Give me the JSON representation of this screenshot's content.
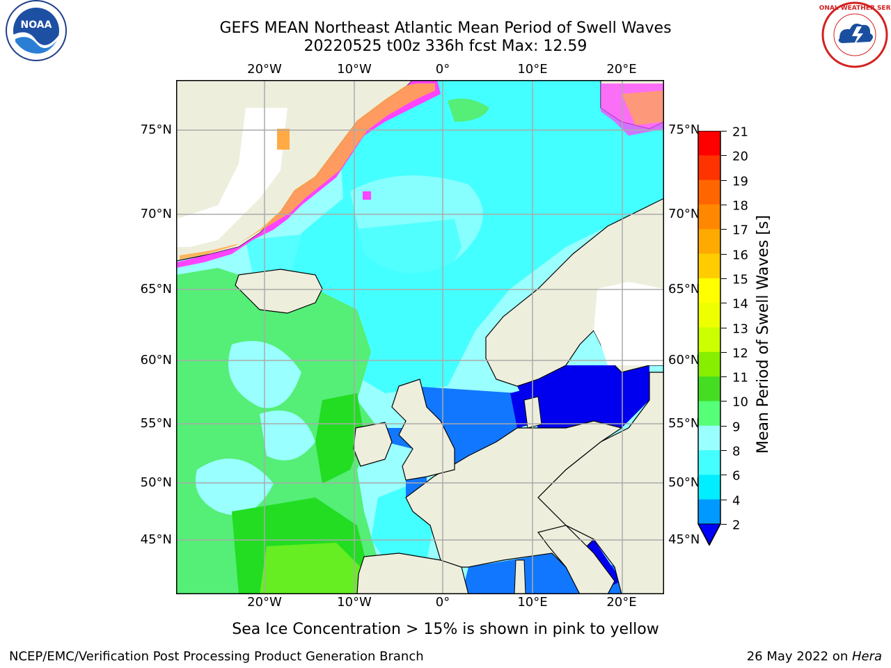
{
  "title_line1": "GEFS MEAN Northeast Atlantic Mean Period of Swell Waves",
  "title_line2": "20220525 t00z 336h fcst   Max: 12.59",
  "logos": {
    "left": "noaa-logo",
    "right": "national-weather-service-logo",
    "left_text": "NOAA",
    "right_text": "NATIONAL WEATHER SERVICE"
  },
  "map": {
    "lon_ticks_top": [
      "20°W",
      "10°W",
      "0°",
      "10°E",
      "20°E"
    ],
    "lon_ticks_bottom": [
      "20°W",
      "10°W",
      "0°",
      "10°E",
      "20°E"
    ],
    "lat_ticks_left": [
      "75°N",
      "70°N",
      "65°N",
      "60°N",
      "55°N",
      "50°N",
      "45°N"
    ],
    "lat_ticks_right": [
      "75°N",
      "70°N",
      "65°N",
      "60°N",
      "55°N",
      "50°N",
      "45°N"
    ],
    "colors": {
      "land": "#eeeedd",
      "ocean_main": "#99ffff",
      "ocean_cyan": "#44ffff",
      "ocean_green": "#55ee77",
      "ocean_bright_green": "#22dd22",
      "ocean_blue": "#1177ff",
      "ocean_deep_blue": "#0000ee",
      "sea_ice": "#ff44ff",
      "sea_ice_edge": "#ffaa44",
      "grid": "#aaaaaa"
    }
  },
  "colorbar": {
    "title": "Mean Period of Swell Waves [s]",
    "labels": [
      "21",
      "20",
      "19",
      "18",
      "17",
      "16",
      "15",
      "14",
      "13",
      "12",
      "11",
      "10",
      "9",
      "8",
      "6",
      "4",
      "2"
    ],
    "colors": [
      "#ff0000",
      "#ff3300",
      "#ff6600",
      "#ff8800",
      "#ffaa00",
      "#ffcc00",
      "#ffee00",
      "#ffff00",
      "#eeff00",
      "#ccff00",
      "#88ee00",
      "#44dd22",
      "#00dd00",
      "#55ff77",
      "#99ffff",
      "#44ffff",
      "#00eeff",
      "#0099ff",
      "#0000ff"
    ]
  },
  "subtitle": "Sea Ice Concentration > 15% is shown in pink to yellow",
  "footer_left": "NCEP/EMC/Verification Post Processing Product Generation Branch",
  "footer_right_date": "26 May 2022 on ",
  "footer_right_host": "Hera"
}
